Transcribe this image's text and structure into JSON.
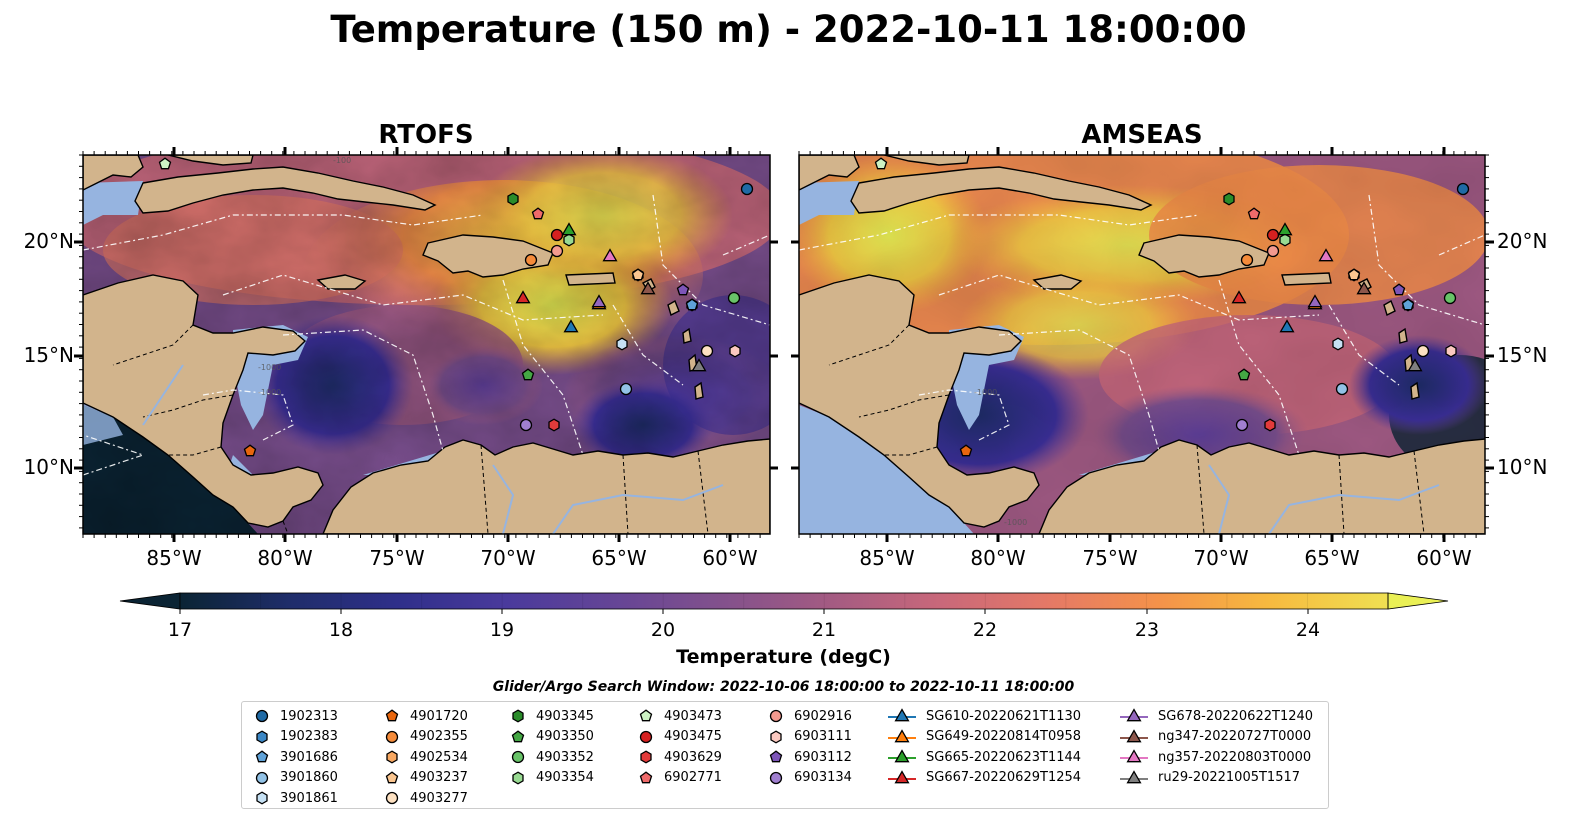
{
  "title": "Temperature (150 m) - 2022-10-11 18:00:00",
  "panels": [
    {
      "title": "RTOFS"
    },
    {
      "title": "AMSEAS"
    }
  ],
  "axes": {
    "lat_ticks": [
      "20°N",
      "15°N",
      "10°N"
    ],
    "lon_ticks": [
      "85°W",
      "80°W",
      "75°W",
      "70°W",
      "65°W",
      "60°W"
    ]
  },
  "colorbar": {
    "label": "Temperature (degC)",
    "ticks": [
      "17",
      "18",
      "19",
      "20",
      "21",
      "22",
      "23",
      "24"
    ],
    "range": [
      16.75,
      24.75
    ],
    "extend": "both",
    "colormap": [
      "#0b2434",
      "#1f2d6a",
      "#3b2f98",
      "#5f3f9a",
      "#7a4f8e",
      "#a05a84",
      "#c9687a",
      "#e57966",
      "#f48e4a",
      "#f7ad40",
      "#f5cb45",
      "#eaf055"
    ]
  },
  "search_window": "Glider/Argo Search Window: 2022-10-06 18:00:00 to 2022-10-11 18:00:00",
  "legend": {
    "columns": [
      [
        {
          "label": "1902313",
          "marker": "circle",
          "color": "#1f6aa5"
        },
        {
          "label": "1902383",
          "marker": "hexagon",
          "color": "#3b87c5"
        },
        {
          "label": "3901686",
          "marker": "pentagon",
          "color": "#5fa2d8"
        },
        {
          "label": "3901860",
          "marker": "circle",
          "color": "#92c2e6"
        },
        {
          "label": "3901861",
          "marker": "hexagon",
          "color": "#c6e1f4"
        }
      ],
      [
        {
          "label": "4901720",
          "marker": "pentagon",
          "color": "#e8660e"
        },
        {
          "label": "4902355",
          "marker": "circle",
          "color": "#f58b3a"
        },
        {
          "label": "4902534",
          "marker": "hexagon",
          "color": "#f8a862"
        },
        {
          "label": "4903237",
          "marker": "pentagon",
          "color": "#fbc690"
        },
        {
          "label": "4903277",
          "marker": "circle",
          "color": "#fde1c2"
        }
      ],
      [
        {
          "label": "4903345",
          "marker": "hexagon",
          "color": "#2a8c2a"
        },
        {
          "label": "4903350",
          "marker": "pentagon",
          "color": "#44a744"
        },
        {
          "label": "4903352",
          "marker": "circle",
          "color": "#68c368"
        },
        {
          "label": "4903354",
          "marker": "hexagon",
          "color": "#98da92"
        }
      ],
      [
        {
          "label": "4903473",
          "marker": "pentagon",
          "color": "#cdf2c4"
        },
        {
          "label": "4903475",
          "marker": "circle",
          "color": "#d62020"
        },
        {
          "label": "4903629",
          "marker": "hexagon",
          "color": "#e23b3b"
        },
        {
          "label": "6902771",
          "marker": "pentagon",
          "color": "#ef6a6a"
        }
      ],
      [
        {
          "label": "6902916",
          "marker": "circle",
          "color": "#f39a8f"
        },
        {
          "label": "6903111",
          "marker": "hexagon",
          "color": "#fbc9c0"
        },
        {
          "label": "6903112",
          "marker": "pentagon",
          "color": "#7d55b8"
        },
        {
          "label": "6903134",
          "marker": "circle",
          "color": "#a07fd0"
        }
      ],
      [
        {
          "label": "SG610-20220621T1130",
          "marker": "triangle-line",
          "color": "#1f77b4"
        },
        {
          "label": "SG649-20220814T0958",
          "marker": "triangle-line",
          "color": "#ff7f0e"
        },
        {
          "label": "SG665-20220623T1144",
          "marker": "triangle-line",
          "color": "#2ca02c"
        },
        {
          "label": "SG667-20220629T1254",
          "marker": "triangle-line",
          "color": "#d62728"
        }
      ],
      [
        {
          "label": "SG678-20220622T1240",
          "marker": "triangle-line",
          "color": "#9467bd"
        },
        {
          "label": "ng347-20220727T0000",
          "marker": "triangle-line",
          "color": "#8c564b"
        },
        {
          "label": "ng357-20220803T0000",
          "marker": "triangle-line",
          "color": "#e377c2"
        },
        {
          "label": "ru29-20221005T1517",
          "marker": "triangle-line",
          "color": "#7f7f7f"
        }
      ]
    ]
  },
  "colors": {
    "land": "#d2b48c",
    "shelf_water": "#96b4e0"
  }
}
